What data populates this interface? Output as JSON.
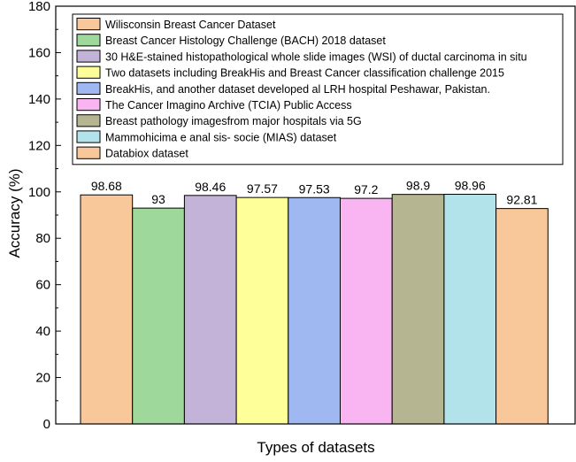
{
  "chart_data": {
    "type": "bar",
    "title": "",
    "xlabel": "Types of datasets",
    "ylabel": "Accuracy (%)",
    "ylim": [
      0,
      180
    ],
    "yticks": [
      0,
      20,
      40,
      60,
      80,
      100,
      120,
      140,
      160,
      180
    ],
    "grid": false,
    "legend_position": "top-left",
    "series": [
      {
        "name": "Wilisconsin Breast Cancer Dataset",
        "value": 98.68,
        "label": "98.68",
        "color": "#f9c89a"
      },
      {
        "name": "Breast Cancer Histology Challenge (BACH) 2018 dataset",
        "value": 93,
        "label": "93",
        "color": "#9ed89a"
      },
      {
        "name": "30 H&E-stained histopathological whole slide images (WSI) of ductal carcinoma in situ",
        "value": 98.46,
        "label": "98.46",
        "color": "#c3b3d9"
      },
      {
        "name": "Two datasets including BreakHis and Breast Cancer classification challenge 2015",
        "value": 97.57,
        "label": "97.57",
        "color": "#ffff99"
      },
      {
        "name": "BreakHis, and another dataset developed al LRH hospital Peshawar, Pakistan.",
        "value": 97.53,
        "label": "97.53",
        "color": "#9fb8f2"
      },
      {
        "name": "The Cancer Imagino Archive (TCIA) Public Access",
        "value": 97.2,
        "label": "97.2",
        "color": "#f9b5f2"
      },
      {
        "name": "Breast pathology imagesfrom major hospitals via 5G",
        "value": 98.9,
        "label": "98.9",
        "color": "#b5b592"
      },
      {
        "name": "Mammohicima e anal sis- socie (MIAS) dataset",
        "value": 98.96,
        "label": "98.96",
        "color": "#b3e3ea"
      },
      {
        "name": "Databiox dataset",
        "value": 92.81,
        "label": "92.81",
        "color": "#f9c89a"
      }
    ]
  }
}
